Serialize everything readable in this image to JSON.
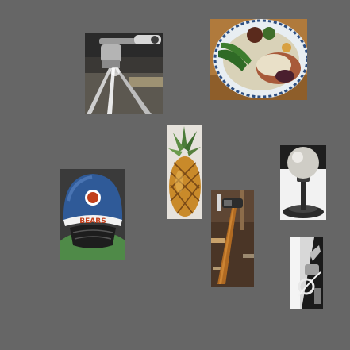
{
  "canvas": {
    "background": "#666666"
  },
  "tiles": [
    {
      "id": "tripod",
      "subject": "tripod-head"
    },
    {
      "id": "dinner",
      "subject": "dinner-plate"
    },
    {
      "id": "pineapple",
      "subject": "pineapple"
    },
    {
      "id": "helmet",
      "subject": "football-helmet",
      "helmet_text": "BEARS"
    },
    {
      "id": "knob",
      "subject": "gear-knob"
    },
    {
      "id": "hammer",
      "subject": "hammer"
    },
    {
      "id": "tap",
      "subject": "faucet"
    }
  ]
}
